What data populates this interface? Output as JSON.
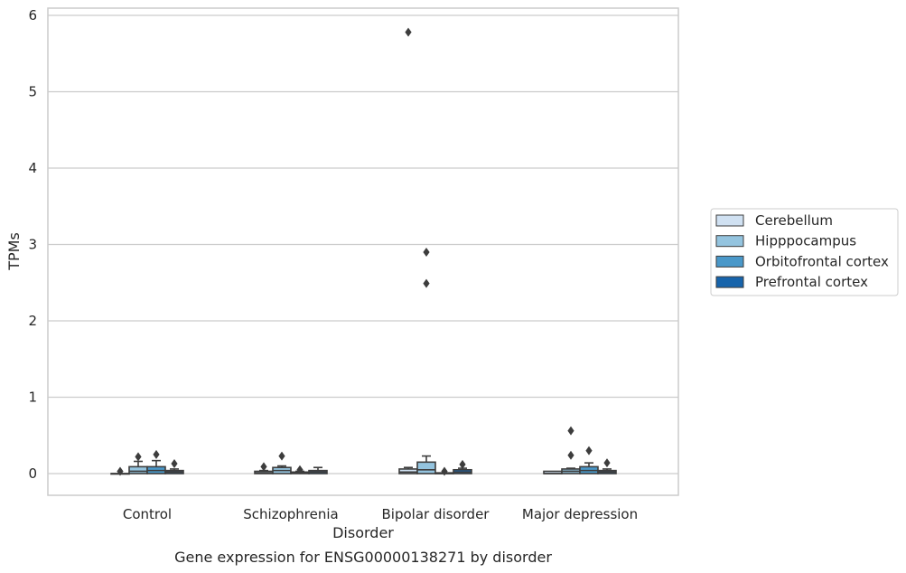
{
  "chart_data": {
    "type": "box",
    "xlabel": "Disorder",
    "ylabel": "TPMs",
    "caption": "Gene expression for ENSG00000138271 by disorder",
    "ylim": [
      -0.28,
      6.08
    ],
    "yticks": [
      0,
      1,
      2,
      3,
      4,
      5,
      6
    ],
    "grid": "horizontal",
    "legend_placement": "right",
    "categories": [
      "Control",
      "Schizophrenia",
      "Bipolar disorder",
      "Major depression"
    ],
    "series": [
      {
        "name": "Cerebellum",
        "color": "#d0e1f2",
        "boxes": [
          {
            "q1": 0.0,
            "median": 0.0,
            "q3": 0.0,
            "whislo": 0.0,
            "whishi": 0.0,
            "fliers": [
              0.03
            ]
          },
          {
            "q1": 0.0,
            "median": 0.01,
            "q3": 0.03,
            "whislo": 0.0,
            "whishi": 0.04,
            "fliers": [
              0.09
            ]
          },
          {
            "q1": 0.0,
            "median": 0.02,
            "q3": 0.06,
            "whislo": 0.0,
            "whishi": 0.08,
            "fliers": [
              5.78
            ]
          },
          {
            "q1": 0.0,
            "median": 0.0,
            "q3": 0.03,
            "whislo": 0.0,
            "whishi": 0.03,
            "fliers": []
          }
        ]
      },
      {
        "name": "Hipppocampus",
        "color": "#94c4df",
        "boxes": [
          {
            "q1": 0.0,
            "median": 0.03,
            "q3": 0.09,
            "whislo": 0.0,
            "whishi": 0.16,
            "fliers": [
              0.22
            ]
          },
          {
            "q1": 0.0,
            "median": 0.04,
            "q3": 0.08,
            "whislo": 0.0,
            "whishi": 0.1,
            "fliers": [
              0.23
            ]
          },
          {
            "q1": 0.0,
            "median": 0.05,
            "q3": 0.15,
            "whislo": 0.0,
            "whishi": 0.23,
            "fliers": [
              2.9,
              2.49
            ]
          },
          {
            "q1": 0.0,
            "median": 0.03,
            "q3": 0.06,
            "whislo": 0.0,
            "whishi": 0.07,
            "fliers": [
              0.56,
              0.24
            ]
          }
        ]
      },
      {
        "name": "Orbitofrontal cortex",
        "color": "#4a98c9",
        "boxes": [
          {
            "q1": 0.0,
            "median": 0.04,
            "q3": 0.09,
            "whislo": 0.0,
            "whishi": 0.17,
            "fliers": [
              0.25
            ]
          },
          {
            "q1": 0.0,
            "median": 0.01,
            "q3": 0.02,
            "whislo": 0.0,
            "whishi": 0.03,
            "fliers": [
              0.05
            ]
          },
          {
            "q1": 0.0,
            "median": 0.0,
            "q3": 0.01,
            "whislo": 0.0,
            "whishi": 0.01,
            "fliers": [
              0.03
            ]
          },
          {
            "q1": 0.0,
            "median": 0.04,
            "q3": 0.09,
            "whislo": 0.0,
            "whishi": 0.14,
            "fliers": [
              0.3
            ]
          }
        ]
      },
      {
        "name": "Prefrontal cortex",
        "color": "#1764ab",
        "boxes": [
          {
            "q1": 0.0,
            "median": 0.02,
            "q3": 0.04,
            "whislo": 0.0,
            "whishi": 0.06,
            "fliers": [
              0.13
            ]
          },
          {
            "q1": 0.0,
            "median": 0.02,
            "q3": 0.04,
            "whislo": 0.0,
            "whishi": 0.08,
            "fliers": []
          },
          {
            "q1": 0.0,
            "median": 0.02,
            "q3": 0.05,
            "whislo": 0.0,
            "whishi": 0.07,
            "fliers": [
              0.12
            ]
          },
          {
            "q1": 0.0,
            "median": 0.02,
            "q3": 0.04,
            "whislo": 0.0,
            "whishi": 0.06,
            "fliers": [
              0.14
            ]
          }
        ]
      }
    ]
  }
}
